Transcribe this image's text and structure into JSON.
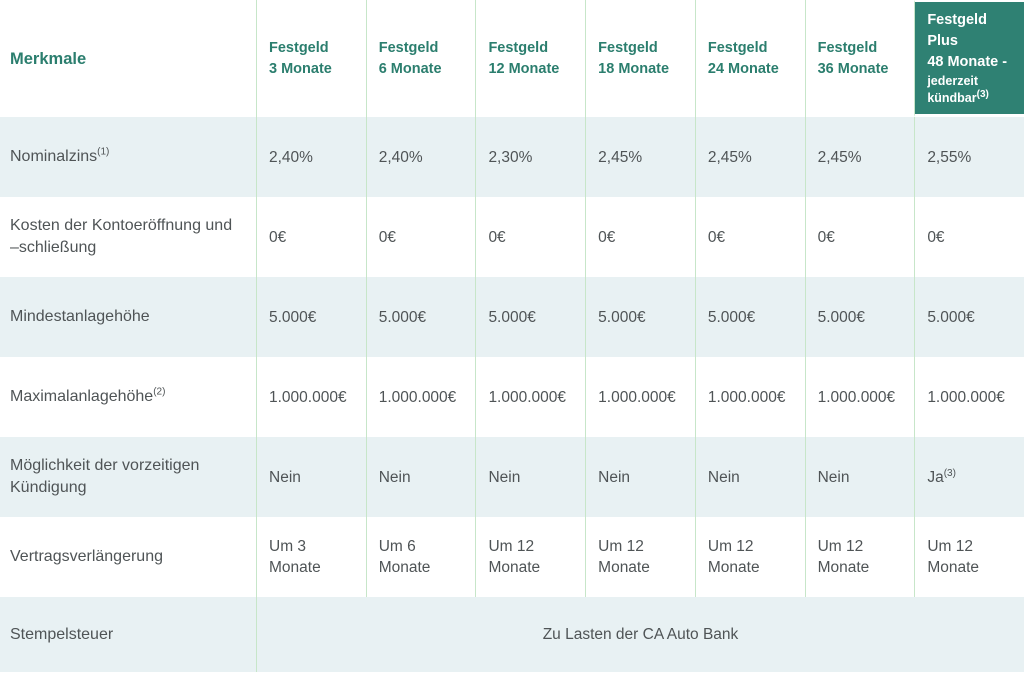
{
  "colors": {
    "teal_background": "#2f8173",
    "teal_text": "#2b7e6e",
    "row_shade": "#e8f1f3",
    "separator_green": "#c7e6c9",
    "body_text": "#4f5456"
  },
  "table": {
    "corner_label": "Merkmale",
    "columns": [
      {
        "line1": "Festgeld",
        "line2": "3 Monate"
      },
      {
        "line1": "Festgeld",
        "line2": "6 Monate"
      },
      {
        "line1": "Festgeld",
        "line2": "12 Monate"
      },
      {
        "line1": "Festgeld",
        "line2": "18 Monate"
      },
      {
        "line1": "Festgeld",
        "line2": "24 Monate"
      },
      {
        "line1": "Festgeld",
        "line2": "36 Monate"
      }
    ],
    "plus_column": {
      "line1": "Festgeld Plus",
      "line2": "48 Monate -",
      "line3": "jederzeit",
      "line4": "kündbar",
      "line4_sup": "(3)"
    },
    "rows": [
      {
        "label": "Nominalzins",
        "label_sup": "(1)",
        "values": [
          "2,40%",
          "2,40%",
          "2,30%",
          "2,45%",
          "2,45%",
          "2,45%",
          "2,55%"
        ]
      },
      {
        "label": "Kosten der Kontoeröffnung und –schließung",
        "values": [
          "0€",
          "0€",
          "0€",
          "0€",
          "0€",
          "0€",
          "0€"
        ]
      },
      {
        "label": "Mindestanlagehöhe",
        "values": [
          "5.000€",
          "5.000€",
          "5.000€",
          "5.000€",
          "5.000€",
          "5.000€",
          "5.000€"
        ]
      },
      {
        "label": "Maximalanlagehöhe",
        "label_sup": "(2)",
        "values": [
          "1.000.000€",
          "1.000.000€",
          "1.000.000€",
          "1.000.000€",
          "1.000.000€",
          "1.000.000€",
          "1.000.000€"
        ]
      },
      {
        "label": "Möglichkeit der vorzeitigen Kündigung",
        "values": [
          "Nein",
          "Nein",
          "Nein",
          "Nein",
          "Nein",
          "Nein",
          "Ja"
        ],
        "value_sup": "(3)"
      },
      {
        "label": "Vertragsverlängerung",
        "values": [
          "Um 3\nMonate",
          "Um 6\nMonate",
          "Um 12\nMonate",
          "Um 12\nMonate",
          "Um 12\nMonate",
          "Um 12\nMonate",
          "Um 12\nMonate"
        ]
      }
    ],
    "footer_row": {
      "label": "Stempelsteuer",
      "value": "Zu Lasten der CA Auto Bank"
    }
  }
}
